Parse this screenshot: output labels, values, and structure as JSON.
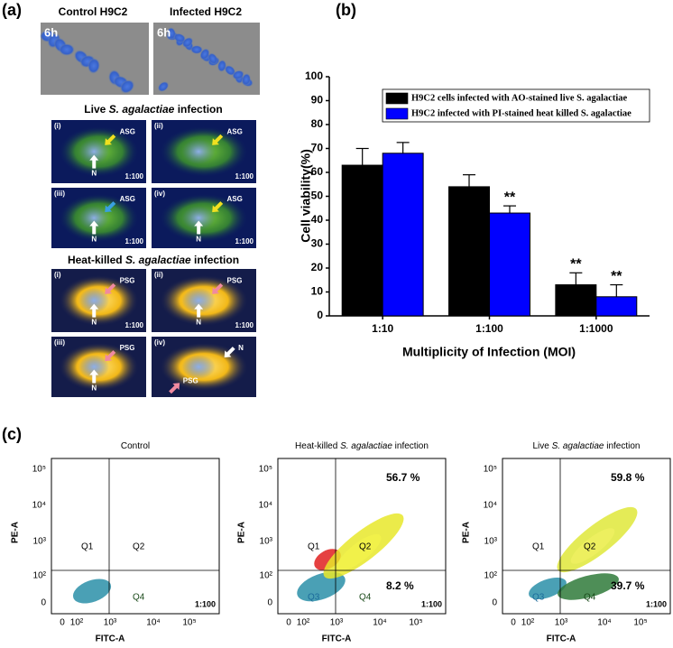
{
  "panel_a": {
    "label": "(a)",
    "columns": [
      "Control H9C2",
      "Infected H9C2"
    ],
    "time": [
      "6h",
      "6h"
    ],
    "live": {
      "title": [
        "Live ",
        "S. agalactiae",
        " infection"
      ],
      "images": [
        {
          "id": "(i)",
          "marker": "ASG",
          "nucleus": "N",
          "ratio": "1:100"
        },
        {
          "id": "(ii)",
          "marker": "ASG",
          "ratio": "1:100"
        },
        {
          "id": "(iii)",
          "marker": "ASG",
          "nucleus": "N",
          "ratio": "1:100"
        },
        {
          "id": "(iv)",
          "marker": "ASG",
          "nucleus": "N",
          "ratio": "1:100"
        }
      ]
    },
    "heat": {
      "title": [
        "Heat-killed ",
        "S. agalactiae",
        " infection"
      ],
      "images": [
        {
          "id": "(i)",
          "marker": "PSG",
          "nucleus": "N",
          "ratio": "1:100"
        },
        {
          "id": "(ii)",
          "marker": "PSG",
          "nucleus": "N",
          "ratio": "1:100"
        },
        {
          "id": "(iii)",
          "marker": "PSG",
          "nucleus": "N"
        },
        {
          "id": "(iv)",
          "marker": "PSG",
          "nucleus": "N"
        }
      ]
    }
  },
  "chart_data": {
    "type": "bar",
    "panel_label": "(b)",
    "x_label": "Multiplicity of Infection (MOI)",
    "y_label": "Cell viability(%)",
    "categories": [
      "1:10",
      "1:100",
      "1:1000"
    ],
    "series": [
      {
        "name": "H9C2 cells infected with AO-stained live S. agalactiae",
        "color": "#000000",
        "values": [
          63,
          54,
          13
        ],
        "errors": [
          7,
          5,
          5
        ],
        "annotations": [
          null,
          null,
          "**"
        ]
      },
      {
        "name": "H9C2 infected with PI-stained heat killed S. agalactiae",
        "color": "#0000ff",
        "values": [
          68,
          43,
          8
        ],
        "errors": [
          4.5,
          3,
          5
        ],
        "annotations": [
          null,
          "**",
          "**"
        ]
      }
    ],
    "ylim": [
      0,
      100
    ],
    "yticks": [
      0,
      10,
      20,
      30,
      40,
      50,
      60,
      70,
      80,
      90,
      100
    ]
  },
  "panel_c": {
    "label": "(c)",
    "x_label": "FITC-A",
    "y_label": "PE-A",
    "xticks": [
      "0",
      "10²",
      "10³",
      "10⁴",
      "10⁵"
    ],
    "yticks": [
      "10⁵",
      "10⁴",
      "10³",
      "10²",
      "0"
    ],
    "plots": [
      {
        "title": [
          "Control"
        ],
        "quadrants": {
          "q1": "Q1",
          "q2": "Q2",
          "q4": "Q4"
        },
        "ratio": "1:100"
      },
      {
        "title": [
          "Heat-killed ",
          "S. agalactiae",
          " infection"
        ],
        "quadrants": {
          "q1": "Q1",
          "q2": "Q2",
          "q3": "Q3",
          "q4": "Q4"
        },
        "upper": "56.7 %",
        "lower": "8.2 %",
        "ratio": "1:100"
      },
      {
        "title": [
          "Live ",
          "S. agalactiae",
          " infection"
        ],
        "quadrants": {
          "q1": "Q1",
          "q2": "Q2",
          "q3": "Q3",
          "q4": "Q4"
        },
        "upper": "59.8 %",
        "lower": "39.7 %",
        "ratio": "1:100"
      }
    ]
  }
}
